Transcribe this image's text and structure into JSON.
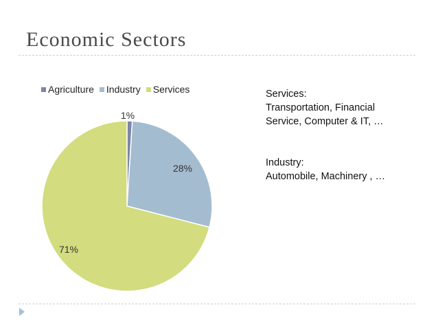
{
  "slide": {
    "title": "Economic Sectors"
  },
  "notes": {
    "services_heading": "Services:",
    "services_line1": "Transportation, Financial",
    "services_line2": "Service, Computer & IT, …",
    "industry_heading": "Industry:",
    "industry_line1": "Automobile, Machinery , …"
  },
  "chart_data": {
    "type": "pie",
    "title": "",
    "categories": [
      "Agriculture",
      "Industry",
      "Services"
    ],
    "values": [
      1,
      28,
      71
    ],
    "labels": [
      "1%",
      "28%",
      "71%"
    ],
    "colors": [
      "#7b86a8",
      "#a4bccf",
      "#d3dc7e"
    ],
    "legend": "top"
  }
}
